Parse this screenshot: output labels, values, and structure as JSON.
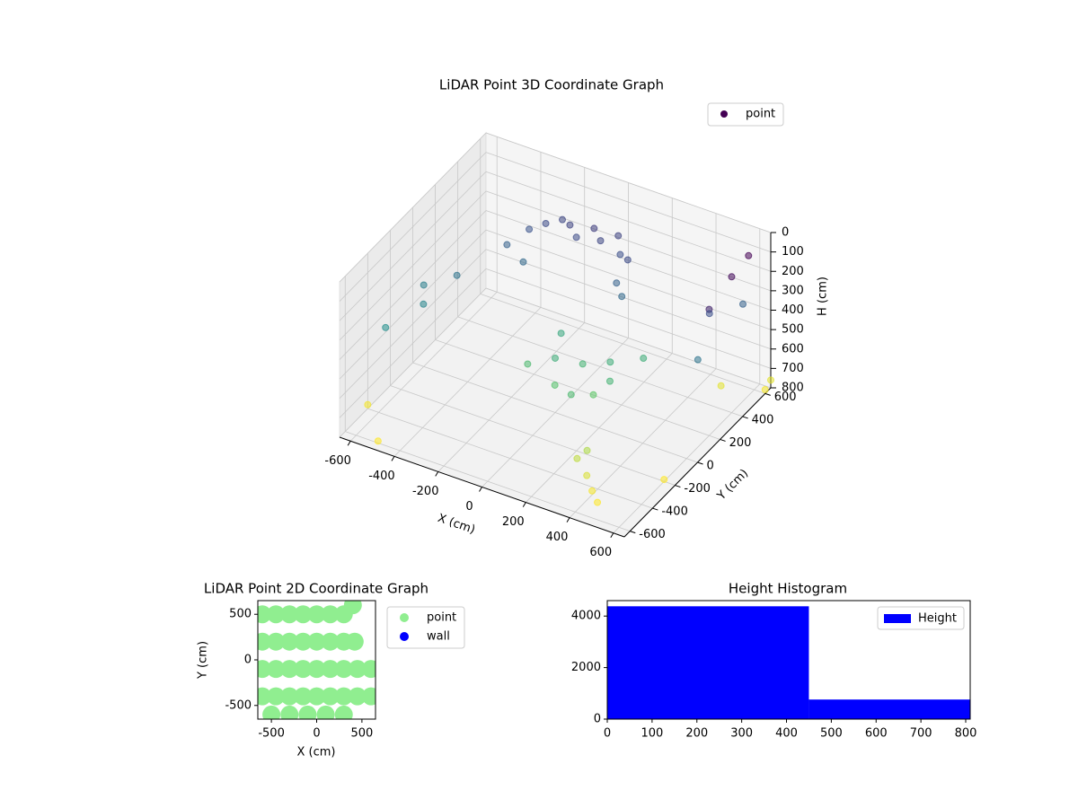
{
  "chart_data": [
    {
      "type": "scatter3d",
      "title": "LiDAR Point 3D Coordinate Graph",
      "xlabel": "X (cm)",
      "ylabel": "Y (cm)",
      "zlabel": "H (cm)",
      "xlim": [
        -650,
        650
      ],
      "ylim": [
        -650,
        650
      ],
      "zlim": [
        800,
        0
      ],
      "xticks": [
        -600,
        -400,
        -200,
        0,
        200,
        400,
        600
      ],
      "yticks": [
        -600,
        -400,
        -200,
        0,
        200,
        400,
        600
      ],
      "zticks": [
        0,
        100,
        200,
        300,
        400,
        500,
        600,
        700,
        800
      ],
      "colormap": "viridis",
      "grid": true,
      "legend": "upper right",
      "series": [
        {
          "name": "point",
          "color": "#440154",
          "x": [
            -350,
            -300,
            -250,
            -200,
            -150,
            -100,
            -50,
            0,
            50,
            100,
            -400,
            -300,
            100,
            150,
            -550,
            -620,
            -600,
            -500,
            600,
            600,
            600,
            550,
            600,
            600,
            0,
            100,
            200,
            -100,
            50,
            150,
            250,
            -50,
            300,
            200,
            300,
            350,
            400,
            280,
            450,
            -650,
            -500,
            650,
            650,
            600,
            500
          ],
          "y": [
            450,
            500,
            550,
            520,
            480,
            540,
            500,
            560,
            480,
            450,
            350,
            300,
            350,
            300,
            -100,
            -300,
            0,
            100,
            200,
            400,
            550,
            300,
            100,
            500,
            0,
            50,
            100,
            -50,
            -100,
            -150,
            0,
            150,
            200,
            -50,
            -300,
            -400,
            -450,
            -350,
            -500,
            -400,
            -600,
            600,
            650,
            -200,
            500
          ],
          "z": [
            260,
            240,
            230,
            220,
            240,
            210,
            230,
            220,
            250,
            240,
            300,
            320,
            300,
            320,
            400,
            430,
            380,
            350,
            150,
            100,
            80,
            250,
            350,
            300,
            520,
            540,
            520,
            560,
            580,
            560,
            540,
            500,
            520,
            600,
            700,
            750,
            780,
            720,
            790,
            780,
            790,
            780,
            760,
            790,
            760
          ]
        }
      ]
    },
    {
      "type": "scatter",
      "title": "LiDAR Point 2D Coordinate Graph",
      "xlabel": "X (cm)",
      "ylabel": "Y (cm)",
      "xlim": [
        -650,
        650
      ],
      "ylim": [
        -650,
        650
      ],
      "xticks": [
        -500,
        0,
        500
      ],
      "yticks": [
        -500,
        0,
        500
      ],
      "legend": "outside right",
      "series": [
        {
          "name": "point",
          "color": "#90ee90",
          "x": [
            -600,
            -450,
            -300,
            -150,
            0,
            150,
            300,
            400,
            -600,
            -450,
            -300,
            -150,
            0,
            150,
            300,
            420,
            -600,
            -450,
            -300,
            -150,
            0,
            150,
            300,
            450,
            600,
            -600,
            -450,
            -300,
            -150,
            0,
            150,
            300,
            450,
            600,
            -500,
            -300,
            -100,
            100,
            300
          ],
          "y": [
            500,
            500,
            500,
            500,
            500,
            500,
            500,
            600,
            200,
            200,
            200,
            200,
            200,
            200,
            200,
            200,
            -100,
            -100,
            -100,
            -100,
            -100,
            -100,
            -100,
            -100,
            -100,
            -400,
            -400,
            -400,
            -400,
            -400,
            -400,
            -400,
            -400,
            -400,
            -600,
            -600,
            -600,
            -600,
            -600
          ]
        },
        {
          "name": "wall",
          "color": "#0000ff",
          "x": [],
          "y": []
        }
      ]
    },
    {
      "type": "histogram",
      "title": "Height Histogram",
      "bins": [
        0,
        450,
        810
      ],
      "values": [
        4380,
        760
      ],
      "xlim": [
        0,
        810
      ],
      "ylim": [
        0,
        4600
      ],
      "xticks": [
        0,
        100,
        200,
        300,
        400,
        500,
        600,
        700,
        800
      ],
      "yticks": [
        0,
        2000,
        4000
      ],
      "legend": "upper right",
      "series_name": "Height",
      "color": "#0000ff"
    }
  ]
}
